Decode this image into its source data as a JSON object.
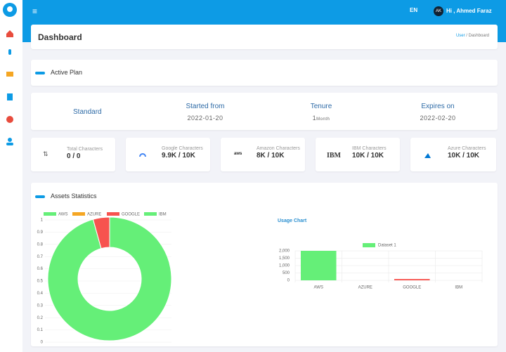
{
  "topbar": {
    "language": "EN",
    "user_initials": "AK",
    "greeting": "Hi , Ahmed Faraz"
  },
  "header": {
    "title": "Dashboard",
    "breadcrumb": [
      "User",
      "Dashboard"
    ],
    "breadcrumb_separator": "/"
  },
  "active_plan": {
    "title": "Active Plan"
  },
  "plan": {
    "name": "Standard",
    "columns": [
      {
        "label": "Started from",
        "value": "2022-01-20"
      },
      {
        "label": "Tenure",
        "value": "1",
        "unit": "Month"
      },
      {
        "label": "Expires on",
        "value": "2022-02-20"
      }
    ]
  },
  "stats": [
    {
      "label": "Total Characters",
      "value": "0 / 0"
    },
    {
      "label": "Google Characters",
      "value": "9.9K / 10K"
    },
    {
      "label": "Amazon Characters",
      "value": "8K / 10K",
      "logo": "aws"
    },
    {
      "label": "IBM Characters",
      "value": "10K / 10K",
      "logo": "IBM"
    },
    {
      "label": "Azure Characters",
      "value": "10K / 10K"
    }
  ],
  "assets": {
    "title": "Assets Statistics",
    "chart": {
      "type": "doughnut",
      "categories": [
        "AWS",
        "AZURE",
        "GOOGLE",
        "IBM"
      ],
      "values": [
        2000,
        0,
        90,
        0
      ],
      "colors": [
        "#65ef78",
        "#f5a623",
        "#f7534f",
        "#65ef78"
      ],
      "ylim": [
        0,
        1
      ],
      "yticks": [
        0,
        0.1,
        0.2,
        0.3,
        0.4,
        0.5,
        0.6,
        0.7,
        0.8,
        0.9,
        1
      ]
    }
  },
  "usage_chart": {
    "type": "bar",
    "title": "Usage Chart",
    "categories": [
      "AWS",
      "AZURE",
      "GOOGLE",
      "IBM"
    ],
    "colors": [
      "#65ef78",
      "#65ef78",
      "#f7534f",
      "#65ef78"
    ],
    "series": [
      {
        "name": "Dataset 1",
        "color": "#65ef78",
        "values": [
          2000,
          0,
          90,
          0
        ]
      }
    ],
    "ylim": [
      0,
      2000
    ],
    "yticks": [
      0,
      {
        "value": 500,
        "label": "500"
      },
      {
        "value": 1000,
        "label": "1,000"
      },
      {
        "value": 1500,
        "label": "1,500"
      },
      {
        "value": 2000,
        "label": "2,000"
      }
    ],
    "grid": true
  }
}
